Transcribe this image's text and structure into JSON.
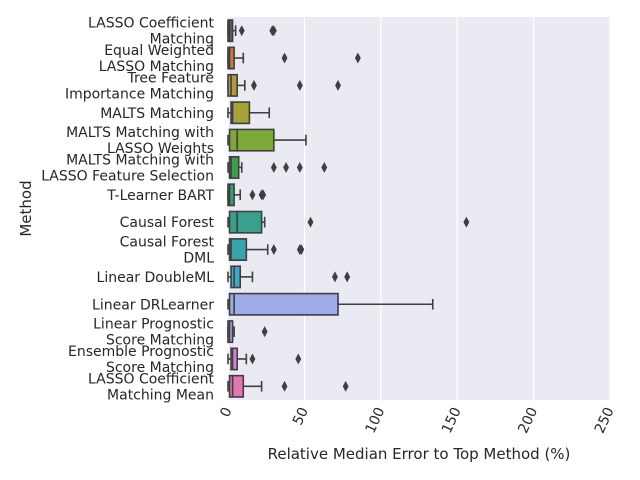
{
  "chart_data": {
    "type": "box",
    "orientation": "horizontal",
    "title": "",
    "xlabel": "Relative Median Error to Top Method (%)",
    "ylabel": "Method",
    "xlim": [
      0,
      250
    ],
    "xticks": [
      0,
      50,
      100,
      150,
      200,
      250
    ],
    "grid": true,
    "legend": "none",
    "categories": [
      {
        "label_lines": [
          "LASSO Coefficient",
          "Matching"
        ],
        "color": "#7b5563",
        "q1": 0,
        "median": 1,
        "q3": 3,
        "whisker_low": 0,
        "whisker_high": 5,
        "fliers": [
          9,
          29,
          30
        ]
      },
      {
        "label_lines": [
          "Equal Weighted",
          "LASSO Matching"
        ],
        "color": "#bf7a52",
        "q1": 0,
        "median": 1,
        "q3": 4,
        "whisker_low": 0,
        "whisker_high": 10,
        "fliers": [
          37,
          85
        ]
      },
      {
        "label_lines": [
          "Tree Feature",
          "Importance Matching"
        ],
        "color": "#b59642",
        "q1": 0,
        "median": 2,
        "q3": 6,
        "whisker_low": 0,
        "whisker_high": 11,
        "fliers": [
          17,
          47,
          72
        ]
      },
      {
        "label_lines": [
          "MALTS Matching"
        ],
        "color": "#a6a23a",
        "q1": 2,
        "median": 3,
        "q3": 14,
        "whisker_low": 0,
        "whisker_high": 27,
        "fliers": []
      },
      {
        "label_lines": [
          "MALTS Matching with",
          "LASSO Weights"
        ],
        "color": "#7ea93a",
        "q1": 1,
        "median": 6,
        "q3": 30,
        "whisker_low": 0,
        "whisker_high": 51,
        "fliers": []
      },
      {
        "label_lines": [
          "MALTS Matching with",
          "LASSO Feature Selection"
        ],
        "color": "#3f9e4a",
        "q1": 1,
        "median": 2,
        "q3": 7,
        "whisker_low": 0,
        "whisker_high": 9,
        "fliers": [
          30,
          38,
          47,
          63
        ]
      },
      {
        "label_lines": [
          "T-Learner BART"
        ],
        "color": "#3a9a7a",
        "q1": 0,
        "median": 1,
        "q3": 4,
        "whisker_low": 0,
        "whisker_high": 8,
        "fliers": [
          16,
          22,
          23
        ]
      },
      {
        "label_lines": [
          "Causal Forest"
        ],
        "color": "#3aa08e",
        "q1": 1,
        "median": 6,
        "q3": 22,
        "whisker_low": 0,
        "whisker_high": 24,
        "fliers": [
          54,
          156
        ]
      },
      {
        "label_lines": [
          "Causal Forest",
          "DML"
        ],
        "color": "#3aa2ab",
        "q1": 1,
        "median": 2,
        "q3": 12,
        "whisker_low": 0,
        "whisker_high": 26,
        "fliers": [
          30,
          47,
          48
        ]
      },
      {
        "label_lines": [
          "Linear DoubleML"
        ],
        "color": "#43a6c7",
        "q1": 2,
        "median": 4,
        "q3": 8,
        "whisker_low": 0,
        "whisker_high": 16,
        "fliers": [
          70,
          78
        ]
      },
      {
        "label_lines": [
          "Linear DRLearner"
        ],
        "color": "#9eabe8",
        "q1": 1,
        "median": 4,
        "q3": 72,
        "whisker_low": 0,
        "whisker_high": 134,
        "fliers": []
      },
      {
        "label_lines": [
          "Linear Prognostic",
          "Score Matching"
        ],
        "color": "#b8a0e4",
        "q1": 0,
        "median": 1,
        "q3": 3,
        "whisker_low": 0,
        "whisker_high": 4,
        "fliers": [
          24
        ]
      },
      {
        "label_lines": [
          "Ensemble Prognostic",
          "Score Matching"
        ],
        "color": "#d97ee0",
        "q1": 2,
        "median": 3,
        "q3": 6,
        "whisker_low": 0,
        "whisker_high": 12,
        "fliers": [
          16,
          46
        ]
      },
      {
        "label_lines": [
          "LASSO Coefficient",
          "Matching Mean"
        ],
        "color": "#e376b3",
        "q1": 1,
        "median": 3,
        "q3": 10,
        "whisker_low": 0,
        "whisker_high": 22,
        "fliers": [
          37,
          77
        ]
      }
    ]
  }
}
